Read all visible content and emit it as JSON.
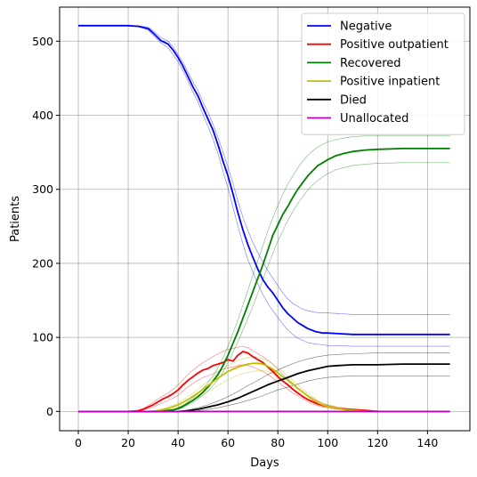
{
  "chart_data": {
    "type": "line",
    "xlabel": "Days",
    "ylabel": "Patients",
    "xlim": [
      -7.5,
      157
    ],
    "ylim": [
      -26,
      546
    ],
    "xticks": [
      0,
      20,
      40,
      60,
      80,
      100,
      120,
      140
    ],
    "yticks": [
      0,
      100,
      200,
      300,
      400,
      500
    ],
    "grid": true,
    "legend_position": "top-right",
    "series": [
      {
        "name": "Negative",
        "color": "#0000ff",
        "x": [
          0,
          10,
          20,
          24,
          28,
          30,
          33,
          36,
          38,
          40,
          42,
          44,
          46,
          48,
          50,
          52,
          54,
          56,
          58,
          60,
          62,
          64,
          66,
          68,
          70,
          72,
          74,
          76,
          78,
          80,
          82,
          84,
          86,
          88,
          90,
          92,
          95,
          98,
          100,
          105,
          110,
          120,
          130,
          140,
          149
        ],
        "y": [
          521,
          521,
          521,
          520,
          517,
          511,
          501,
          496,
          488,
          478,
          466,
          452,
          438,
          426,
          410,
          395,
          380,
          360,
          338,
          318,
          294,
          268,
          245,
          225,
          208,
          192,
          178,
          168,
          160,
          150,
          140,
          132,
          126,
          120,
          116,
          112,
          108,
          106,
          106,
          105,
          104,
          104,
          104,
          104,
          104
        ],
        "band_upper": [
          521,
          521,
          521,
          521,
          519,
          514,
          505,
          500,
          492,
          482,
          471,
          458,
          445,
          433,
          418,
          404,
          388,
          370,
          350,
          330,
          308,
          284,
          262,
          244,
          228,
          214,
          202,
          190,
          180,
          170,
          160,
          152,
          146,
          142,
          138,
          136,
          134,
          133,
          133,
          132,
          131,
          131,
          131,
          131,
          131
        ],
        "band_lower": [
          521,
          521,
          521,
          520,
          515,
          508,
          498,
          491,
          482,
          472,
          460,
          446,
          431,
          418,
          401,
          385,
          368,
          348,
          324,
          302,
          276,
          250,
          226,
          205,
          188,
          172,
          158,
          146,
          136,
          127,
          118,
          110,
          104,
          99,
          96,
          93,
          91,
          90,
          89,
          89,
          88,
          88,
          88,
          88,
          88
        ]
      },
      {
        "name": "Positive outpatient",
        "color": "#ff0000",
        "x": [
          0,
          20,
          24,
          26,
          28,
          30,
          32,
          34,
          36,
          38,
          40,
          42,
          44,
          46,
          48,
          50,
          52,
          54,
          56,
          58,
          60,
          62,
          64,
          66,
          68,
          70,
          72,
          74,
          76,
          78,
          80,
          82,
          84,
          86,
          88,
          90,
          92,
          94,
          96,
          98,
          100,
          104,
          108,
          112,
          116,
          120,
          130,
          140,
          149
        ],
        "y": [
          0,
          0,
          1,
          3,
          6,
          9,
          13,
          17,
          20,
          24,
          29,
          36,
          42,
          47,
          52,
          56,
          58,
          62,
          64,
          66,
          70,
          68,
          76,
          81,
          79,
          74,
          70,
          66,
          60,
          54,
          47,
          41,
          36,
          30,
          25,
          20,
          16,
          13,
          10,
          8,
          7,
          4,
          3,
          2,
          1,
          0,
          0,
          0,
          0
        ],
        "band_upper": [
          0,
          0,
          1,
          4,
          8,
          12,
          17,
          21,
          25,
          30,
          36,
          43,
          50,
          56,
          61,
          66,
          70,
          74,
          78,
          81,
          84,
          85,
          87,
          88,
          86,
          82,
          78,
          74,
          69,
          64,
          57,
          50,
          44,
          38,
          32,
          27,
          22,
          18,
          14,
          11,
          9,
          6,
          4,
          3,
          2,
          1,
          0,
          0,
          0
        ],
        "band_lower": [
          0,
          0,
          0,
          2,
          4,
          6,
          9,
          12,
          15,
          18,
          22,
          28,
          33,
          38,
          42,
          46,
          48,
          51,
          54,
          57,
          59,
          60,
          62,
          63,
          62,
          60,
          57,
          54,
          50,
          45,
          40,
          35,
          30,
          25,
          21,
          17,
          13,
          10,
          8,
          6,
          5,
          3,
          2,
          1,
          0,
          0,
          0,
          0,
          0
        ]
      },
      {
        "name": "Recovered",
        "color": "#008000",
        "x": [
          0,
          30,
          35,
          38,
          40,
          42,
          44,
          46,
          48,
          50,
          52,
          54,
          56,
          58,
          60,
          62,
          64,
          66,
          68,
          70,
          72,
          74,
          76,
          78,
          80,
          82,
          84,
          86,
          88,
          90,
          92,
          94,
          96,
          98,
          100,
          103,
          106,
          110,
          115,
          120,
          130,
          140,
          149
        ],
        "y": [
          0,
          0,
          1,
          2,
          4,
          7,
          11,
          15,
          20,
          26,
          33,
          41,
          50,
          62,
          76,
          92,
          108,
          126,
          144,
          162,
          180,
          198,
          218,
          238,
          252,
          266,
          277,
          289,
          300,
          309,
          318,
          325,
          332,
          336,
          340,
          345,
          348,
          351,
          353,
          354,
          355,
          355,
          355
        ],
        "band_upper": [
          0,
          0,
          1,
          2,
          5,
          8,
          13,
          18,
          24,
          31,
          39,
          48,
          59,
          72,
          88,
          106,
          124,
          144,
          164,
          184,
          204,
          224,
          244,
          262,
          278,
          293,
          307,
          318,
          329,
          338,
          346,
          352,
          357,
          361,
          364,
          367,
          369,
          371,
          372,
          372,
          372,
          372,
          372
        ],
        "band_lower": [
          0,
          0,
          0,
          1,
          3,
          5,
          9,
          12,
          17,
          22,
          28,
          35,
          43,
          53,
          66,
          80,
          94,
          110,
          126,
          142,
          160,
          178,
          196,
          214,
          230,
          244,
          258,
          270,
          281,
          290,
          299,
          306,
          312,
          317,
          321,
          326,
          329,
          332,
          334,
          335,
          336,
          336,
          336
        ]
      },
      {
        "name": "Positive inpatient",
        "color": "#bfbf00",
        "x": [
          0,
          28,
          32,
          36,
          40,
          44,
          48,
          52,
          56,
          60,
          64,
          68,
          70,
          72,
          74,
          76,
          78,
          80,
          82,
          84,
          86,
          88,
          90,
          92,
          94,
          96,
          98,
          100,
          104,
          108,
          112,
          116,
          120,
          130,
          149
        ],
        "y": [
          0,
          0,
          1,
          4,
          9,
          16,
          25,
          35,
          45,
          54,
          60,
          64,
          65,
          65,
          64,
          61,
          57,
          52,
          47,
          42,
          37,
          31,
          26,
          21,
          16,
          12,
          9,
          7,
          4,
          2,
          1,
          0,
          0,
          0,
          0
        ],
        "band_upper": [
          0,
          0,
          2,
          6,
          12,
          20,
          30,
          41,
          52,
          62,
          69,
          73,
          74,
          73,
          71,
          68,
          64,
          59,
          54,
          48,
          42,
          36,
          30,
          25,
          20,
          15,
          11,
          8,
          5,
          3,
          1,
          0,
          0,
          0,
          0
        ],
        "band_lower": [
          0,
          0,
          0,
          2,
          6,
          12,
          19,
          27,
          35,
          43,
          49,
          53,
          54,
          55,
          55,
          54,
          51,
          46,
          41,
          36,
          31,
          26,
          21,
          17,
          13,
          10,
          7,
          5,
          3,
          1,
          0,
          0,
          0,
          0,
          0
        ]
      },
      {
        "name": "Died",
        "color": "#000000",
        "x": [
          0,
          40,
          44,
          48,
          52,
          56,
          60,
          64,
          68,
          72,
          76,
          80,
          84,
          88,
          92,
          96,
          100,
          104,
          110,
          120,
          130,
          149
        ],
        "y": [
          0,
          0,
          1,
          3,
          6,
          9,
          13,
          18,
          24,
          30,
          36,
          41,
          46,
          51,
          55,
          58,
          61,
          62,
          63,
          63,
          64,
          64
        ],
        "band_upper": [
          0,
          0,
          2,
          5,
          9,
          14,
          20,
          27,
          35,
          42,
          50,
          56,
          62,
          67,
          71,
          74,
          76,
          77,
          78,
          79,
          79,
          79
        ],
        "band_lower": [
          0,
          0,
          0,
          1,
          3,
          5,
          8,
          11,
          15,
          19,
          24,
          29,
          33,
          37,
          41,
          44,
          46,
          47,
          48,
          48,
          48,
          48
        ]
      },
      {
        "name": "Unallocated",
        "color": "#bf00bf",
        "x": [
          0,
          149
        ],
        "y": [
          0,
          0
        ]
      }
    ]
  }
}
